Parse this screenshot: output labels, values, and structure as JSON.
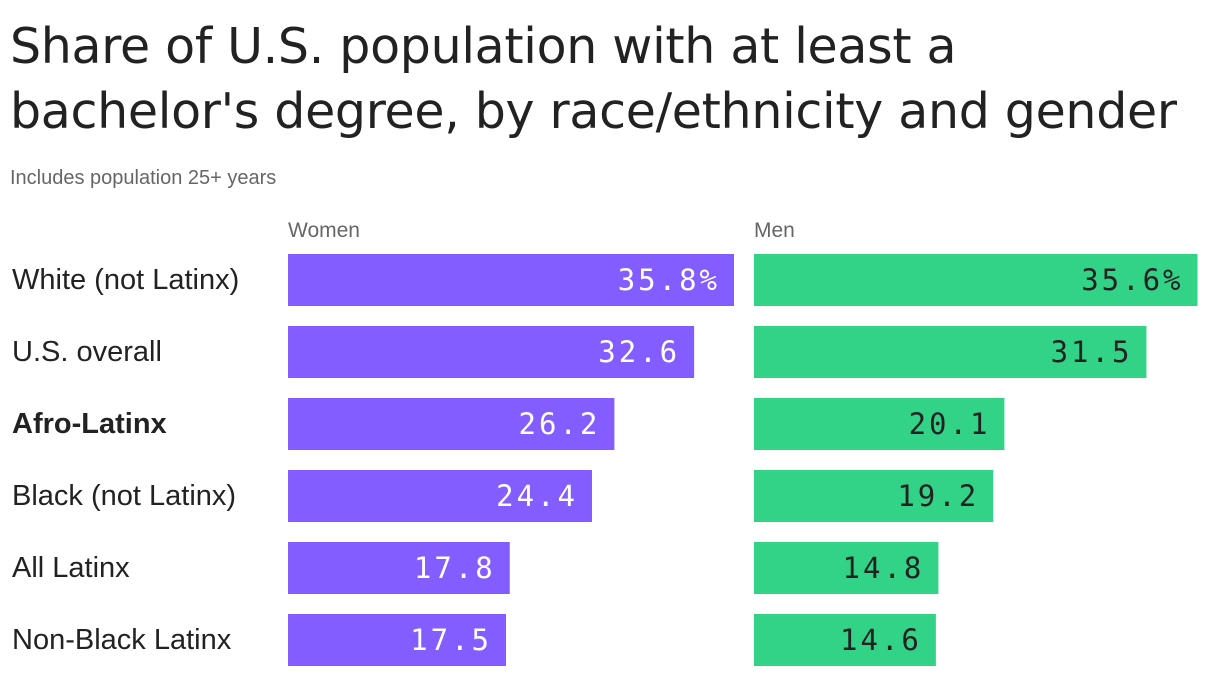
{
  "chart_data": {
    "type": "bar",
    "title": "Share of U.S. population with at least a bachelor's degree, by race/ethnicity and gender",
    "subtitle": "Includes population 25+ years",
    "categories": [
      "White (not Latinx)",
      "U.S. overall",
      "Afro-Latinx",
      "Black (not Latinx)",
      "All Latinx",
      "Non-Black Latinx"
    ],
    "highlighted_category": "Afro-Latinx",
    "orientation": "horizontal",
    "unit": "%",
    "series": [
      {
        "name": "Women",
        "color": "#835dff",
        "label_color": "#ffffff",
        "values": [
          35.8,
          32.6,
          26.2,
          24.4,
          17.8,
          17.5
        ],
        "value_labels": [
          "35.8%",
          "32.6",
          "26.2",
          "24.4",
          "17.8",
          "17.5"
        ]
      },
      {
        "name": "Men",
        "color": "#32d387",
        "label_color": "#222222",
        "values": [
          35.6,
          31.5,
          20.1,
          19.2,
          14.8,
          14.6
        ],
        "value_labels": [
          "35.6%",
          "31.5",
          "20.1",
          "19.2",
          "14.8",
          "14.6"
        ]
      }
    ],
    "xlim": [
      0,
      35.8
    ],
    "grid": false,
    "legend": "none"
  }
}
